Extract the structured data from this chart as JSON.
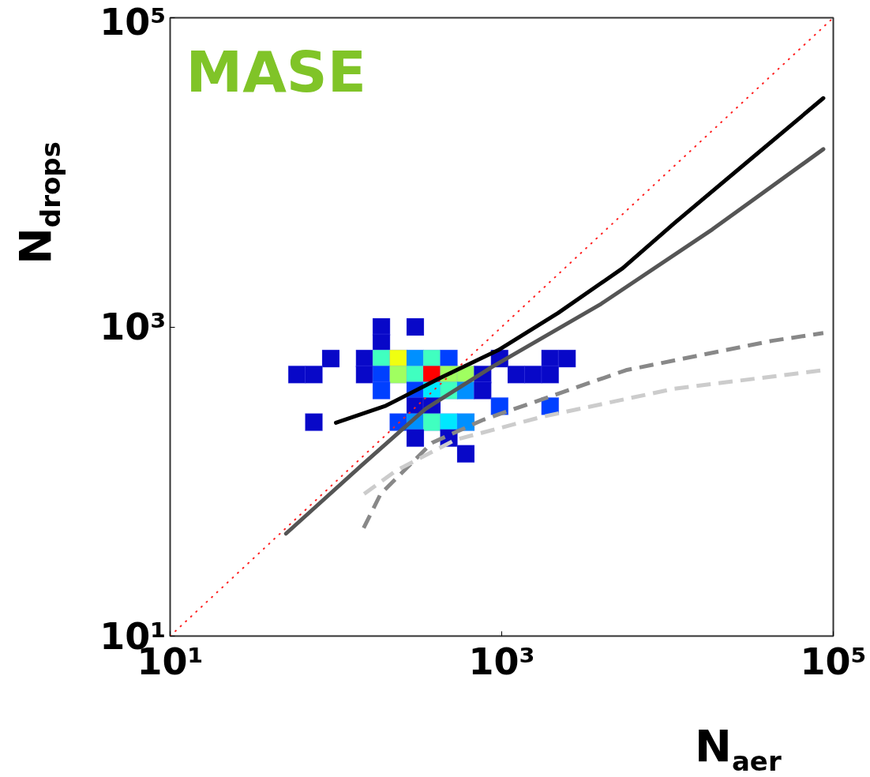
{
  "chart_data": {
    "type": "line",
    "xlabel": "N$_{aer}$",
    "ylabel": "N$_{drops}$",
    "log": "xy",
    "grid": false,
    "xlim": [
      10,
      100000
    ],
    "ylim": [
      10,
      100000
    ],
    "xticks": [
      {
        "value": 10,
        "label": "10¹"
      },
      {
        "value": 1000,
        "label": "10³"
      },
      {
        "value": 100000,
        "label": "10⁵"
      }
    ],
    "yticks": [
      {
        "value": 10,
        "label": "10¹"
      },
      {
        "value": 1000,
        "label": "10³"
      },
      {
        "value": 100000,
        "label": "10⁵"
      }
    ],
    "annotations": [
      "MASE"
    ],
    "series": [
      {
        "type": "scatter",
        "marker": "square",
        "x": [
          188,
          301,
          188,
          93.1,
          149,
          188,
          238,
          301,
          379,
          480,
          971,
          1959,
          2477,
          58.2,
          73.6,
          149,
          188,
          238,
          301,
          379,
          480,
          607,
          767,
          1225,
          1549,
          1959,
          188,
          301,
          379,
          480,
          607,
          767,
          301,
          379,
          971,
          1959,
          73.6,
          238,
          301,
          379,
          480,
          607,
          301,
          480,
          607
        ],
        "values": [
          1000,
          1000,
          789,
          624,
          624,
          624,
          624,
          624,
          624,
          624,
          624,
          624,
          624,
          492,
          492,
          492,
          492,
          492,
          492,
          492,
          492,
          492,
          492,
          492,
          492,
          492,
          388,
          388,
          388,
          388,
          388,
          388,
          307,
          307,
          307,
          307,
          242,
          242,
          242,
          242,
          242,
          242,
          191,
          191,
          151
        ],
        "colors": [
          "#0808c8",
          "#0808c8",
          "#0808c8",
          "#0808c8",
          "#0808c8",
          "#40ffc0",
          "#f0ff10",
          "#0090ff",
          "#40ffc0",
          "#0040ff",
          "#0808c8",
          "#0808c8",
          "#0808c8",
          "#0808c8",
          "#0808c8",
          "#0808c8",
          "#0040ff",
          "#a0ff60",
          "#40ffc0",
          "#ff0000",
          "#a0ff60",
          "#a0ff60",
          "#0808c8",
          "#0808c8",
          "#0808c8",
          "#0808c8",
          "#0040ff",
          "#0040ff",
          "#00e8ff",
          "#40ffc0",
          "#0090ff",
          "#0808c8",
          "#0808c8",
          "#0808c8",
          "#0040ff",
          "#0040ff",
          "#0808c8",
          "#0040ff",
          "#0090ff",
          "#40ffc0",
          "#00e8ff",
          "#0090ff",
          "#0808c8",
          "#0808c8",
          "#0808c8"
        ]
      },
      {
        "color": "#ff2020",
        "line_style": "dotted",
        "x": [
          10,
          100000
        ],
        "values": [
          10,
          100000
        ]
      },
      {
        "color": "#000000",
        "line_style": "solid",
        "x": [
          100,
          200,
          427,
          955,
          2188,
          5370,
          10960,
          34670,
          87100
        ],
        "values": [
          240,
          309,
          468,
          708,
          1230,
          2400,
          4680,
          13180,
          30200
        ]
      },
      {
        "color": "#555555",
        "line_style": "solid",
        "x": [
          50,
          145,
          347,
          871,
          3980,
          18620,
          87100
        ],
        "values": [
          46,
          129,
          295,
          550,
          1410,
          4270,
          14130
        ]
      },
      {
        "color": "#888888",
        "line_style": "dashed",
        "x": [
          147,
          186,
          380,
          776,
          5620,
          42660,
          87100
        ],
        "values": [
          50,
          83,
          178,
          251,
          525,
          813,
          912
        ]
      },
      {
        "color": "#cccccc",
        "line_style": "dashed",
        "x": [
          148,
          229,
          525,
          1778,
          10960,
          87100
        ],
        "values": [
          83,
          117,
          186,
          263,
          398,
          525
        ]
      }
    ]
  }
}
